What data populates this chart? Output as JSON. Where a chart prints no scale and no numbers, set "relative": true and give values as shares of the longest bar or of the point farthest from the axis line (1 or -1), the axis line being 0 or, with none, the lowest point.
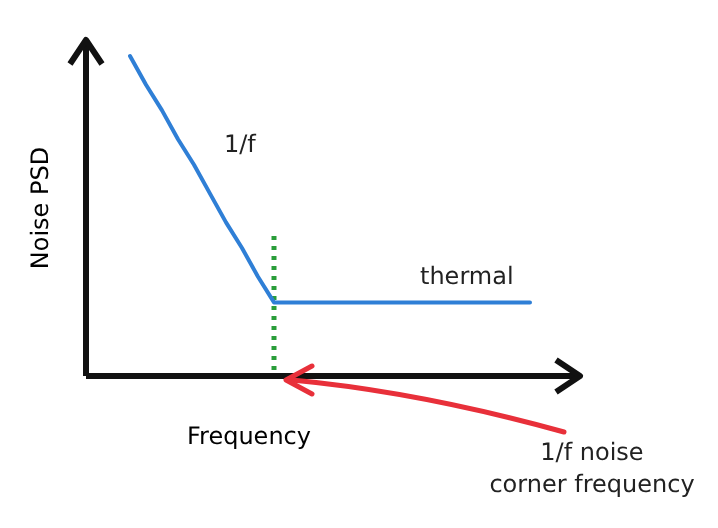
{
  "chart_data": {
    "type": "line",
    "relative": true,
    "tick_labels": false,
    "xlabel": "Frequency",
    "ylabel": "Noise PSD",
    "categories": [
      null,
      null,
      null,
      null,
      null,
      null,
      null,
      null,
      null,
      null,
      null,
      null,
      null,
      null,
      null,
      null,
      null,
      null,
      null,
      null,
      null,
      null,
      null,
      null,
      null,
      null
    ],
    "series": [
      {
        "color": "#2f7fd6",
        "values": [
          1,
          0.91,
          0.83,
          0.74,
          0.66,
          0.57,
          0.48,
          0.4,
          0.31,
          0.23,
          0.23,
          0.23,
          0.23,
          0.23,
          0.23,
          0.23,
          0.23,
          0.23,
          0.23,
          0.23,
          0.23,
          0.23,
          0.23,
          0.23,
          0.23,
          0.23
        ]
      }
    ],
    "annotations": [
      "1/f",
      "thermal",
      "1/f noise\ncorner frequency"
    ]
  }
}
